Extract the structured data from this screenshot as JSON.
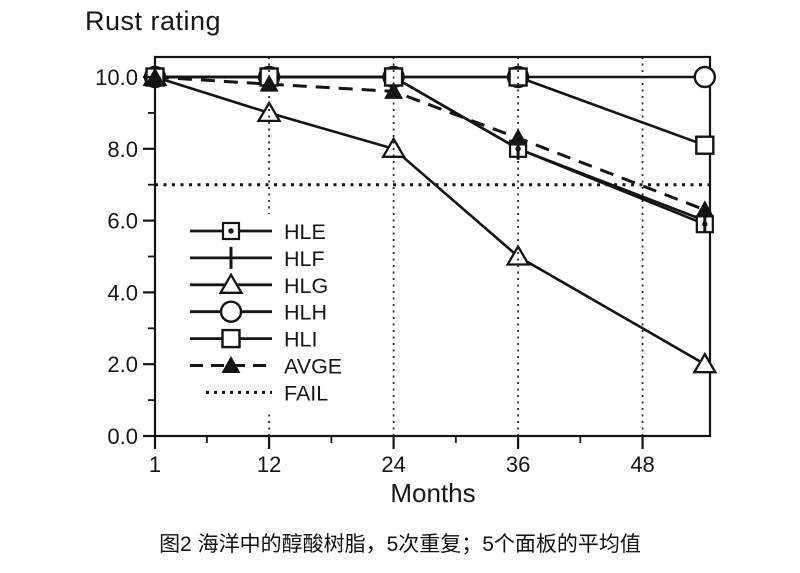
{
  "caption": "图2 海洋中的醇酸树脂，5次重复；5个面板的平均值",
  "chart_data": {
    "type": "line",
    "title": "Rust rating",
    "xlabel": "Months",
    "ylabel": "",
    "x": [
      1,
      12,
      24,
      36,
      54
    ],
    "series": [
      {
        "name": "HLE",
        "line": "solid",
        "marker": "square-dot",
        "values": [
          10,
          10,
          10,
          8.0,
          5.9
        ]
      },
      {
        "name": "HLF",
        "line": "solid",
        "marker": "vtick",
        "values": [
          10,
          10,
          10,
          8.0,
          6.0
        ]
      },
      {
        "name": "HLG",
        "line": "solid",
        "marker": "triangle-open",
        "values": [
          10,
          9.0,
          8.0,
          5.0,
          2.0
        ]
      },
      {
        "name": "HLH",
        "line": "solid",
        "marker": "circle-open",
        "values": [
          10,
          10,
          10,
          10,
          10
        ]
      },
      {
        "name": "HLI",
        "line": "solid",
        "marker": "square-open",
        "values": [
          10,
          10,
          10,
          10,
          8.1
        ]
      },
      {
        "name": "AVGE",
        "line": "dashed",
        "marker": "triangle-filled",
        "values": [
          10,
          9.8,
          9.6,
          8.3,
          6.3
        ]
      },
      {
        "name": "FAIL",
        "line": "dotted",
        "marker": "none",
        "values": [
          7,
          7,
          7,
          7,
          7
        ]
      }
    ],
    "fail_level": 7.0,
    "x_ticks_major": [
      1,
      12,
      24,
      36,
      48
    ],
    "x_ticks_minor": [
      6,
      18,
      30,
      42
    ],
    "y_ticks_major": [
      0,
      2,
      4,
      6,
      8,
      10
    ],
    "y_tick_labels": [
      "0.0",
      "2.0",
      "4.0",
      "6.0",
      "8.0",
      "10.0"
    ],
    "y_ticks_minor": [
      1,
      3,
      5,
      7,
      9
    ],
    "gridlines_x": [
      12,
      24,
      36,
      48
    ],
    "xlim": [
      1,
      54.5
    ],
    "ylim": [
      0,
      10.55
    ],
    "grid": "vertical-dotted",
    "legend_position": "inside-left",
    "colors": {
      "ink": "#141414",
      "background": "#ffffff"
    }
  }
}
